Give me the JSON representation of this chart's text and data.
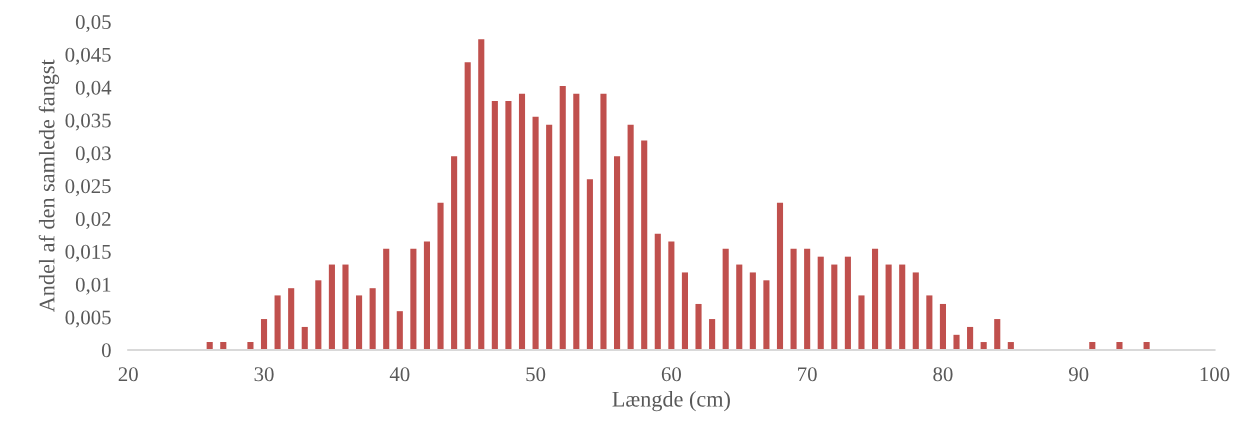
{
  "chart_data": {
    "type": "bar",
    "xlabel": "Længde (cm)",
    "ylabel": "Andel af den samlede fangst",
    "x": [
      26,
      27,
      29,
      30,
      31,
      32,
      33,
      34,
      35,
      36,
      37,
      38,
      39,
      40,
      41,
      42,
      43,
      44,
      45,
      46,
      47,
      48,
      49,
      50,
      51,
      52,
      53,
      54,
      55,
      56,
      57,
      58,
      59,
      60,
      61,
      62,
      63,
      64,
      65,
      66,
      67,
      68,
      69,
      70,
      71,
      72,
      73,
      74,
      75,
      76,
      77,
      78,
      79,
      80,
      81,
      82,
      83,
      84,
      85,
      91,
      93,
      95
    ],
    "values": [
      0.0012,
      0.0012,
      0.0012,
      0.0047,
      0.0083,
      0.0094,
      0.0035,
      0.0106,
      0.013,
      0.013,
      0.0083,
      0.0094,
      0.0154,
      0.0059,
      0.0154,
      0.0165,
      0.0224,
      0.0295,
      0.0438,
      0.0473,
      0.0379,
      0.0379,
      0.039,
      0.0355,
      0.0343,
      0.0402,
      0.039,
      0.026,
      0.039,
      0.0295,
      0.0343,
      0.0319,
      0.0177,
      0.0165,
      0.0118,
      0.007,
      0.0047,
      0.0154,
      0.013,
      0.0118,
      0.0106,
      0.0224,
      0.0154,
      0.0154,
      0.0142,
      0.013,
      0.0142,
      0.0083,
      0.0154,
      0.013,
      0.013,
      0.0118,
      0.0083,
      0.007,
      0.0023,
      0.0035,
      0.0012,
      0.0047,
      0.0012,
      0.0012,
      0.0012,
      0.0012
    ],
    "color": "#c0504d",
    "xlim": [
      20,
      100
    ],
    "xticks": [
      20,
      30,
      40,
      50,
      60,
      70,
      80,
      90,
      100
    ],
    "ylim": [
      0,
      0.05
    ],
    "yticks": [
      {
        "value": 0,
        "label": "0"
      },
      {
        "value": 0.005,
        "label": "0,005"
      },
      {
        "value": 0.01,
        "label": "0,01"
      },
      {
        "value": 0.015,
        "label": "0,015"
      },
      {
        "value": 0.02,
        "label": "0,02"
      },
      {
        "value": 0.025,
        "label": "0,025"
      },
      {
        "value": 0.03,
        "label": "0,03"
      },
      {
        "value": 0.035,
        "label": "0,035"
      },
      {
        "value": 0.04,
        "label": "0,04"
      },
      {
        "value": 0.045,
        "label": "0,045"
      },
      {
        "value": 0.05,
        "label": "0,05"
      }
    ],
    "grid": false,
    "legend": false
  }
}
